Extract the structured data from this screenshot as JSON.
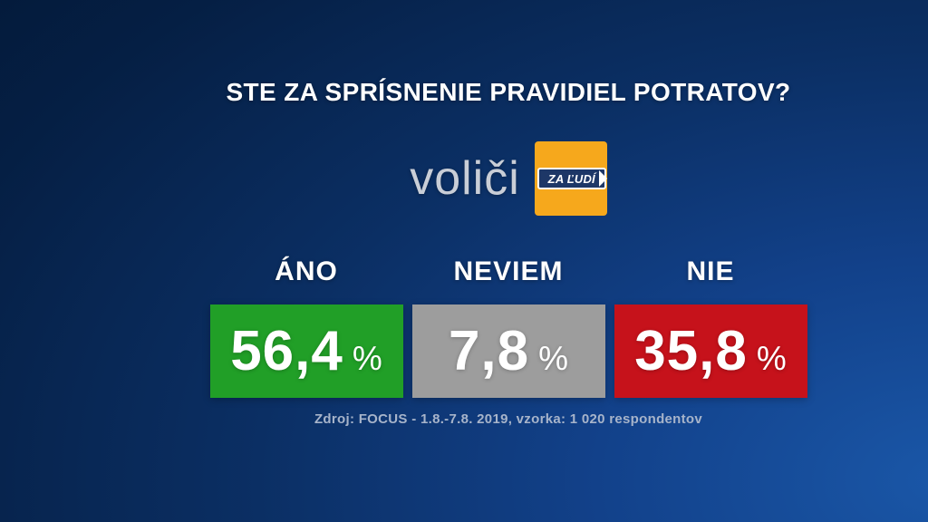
{
  "title": "STE ZA SPRÍSNENIE PRAVIDIEL POTRATOV?",
  "brand": {
    "audience_label": "voliči",
    "party_logo_text": "ZA ĽUDÍ"
  },
  "results": [
    {
      "label": "ÁNO",
      "value": "56,4",
      "unit": "%",
      "color": "#219f27"
    },
    {
      "label": "NEVIEM",
      "value": "7,8",
      "unit": "%",
      "color": "#9d9d9d"
    },
    {
      "label": "NIE",
      "value": "35,8",
      "unit": "%",
      "color": "#c6121b"
    }
  ],
  "source": "Zdroj: FOCUS - 1.8.-7.8. 2019, vzorka: 1 020 respondentov",
  "colors": {
    "background_dark": "#041a3a",
    "background_light": "#1a57a8",
    "logo_orange": "#f6a81c",
    "logo_band_blue": "#1d3767",
    "text_white": "#ffffff",
    "audience_silver": "#c9ced7",
    "source_gray_blue": "#a7b4ca"
  },
  "chart_data": {
    "type": "bar",
    "title": "STE ZA SPRÍSNENIE PRAVIDIEL POTRATOV?",
    "subtitle": "voliči ZA ĽUDÍ",
    "categories": [
      "ÁNO",
      "NEVIEM",
      "NIE"
    ],
    "values": [
      56.4,
      7.8,
      35.8
    ],
    "unit": "%",
    "colors": [
      "#219f27",
      "#9d9d9d",
      "#c6121b"
    ],
    "legend_position": "none",
    "source": "Zdroj: FOCUS - 1.8.-7.8. 2019, vzorka: 1 020 respondentov"
  }
}
